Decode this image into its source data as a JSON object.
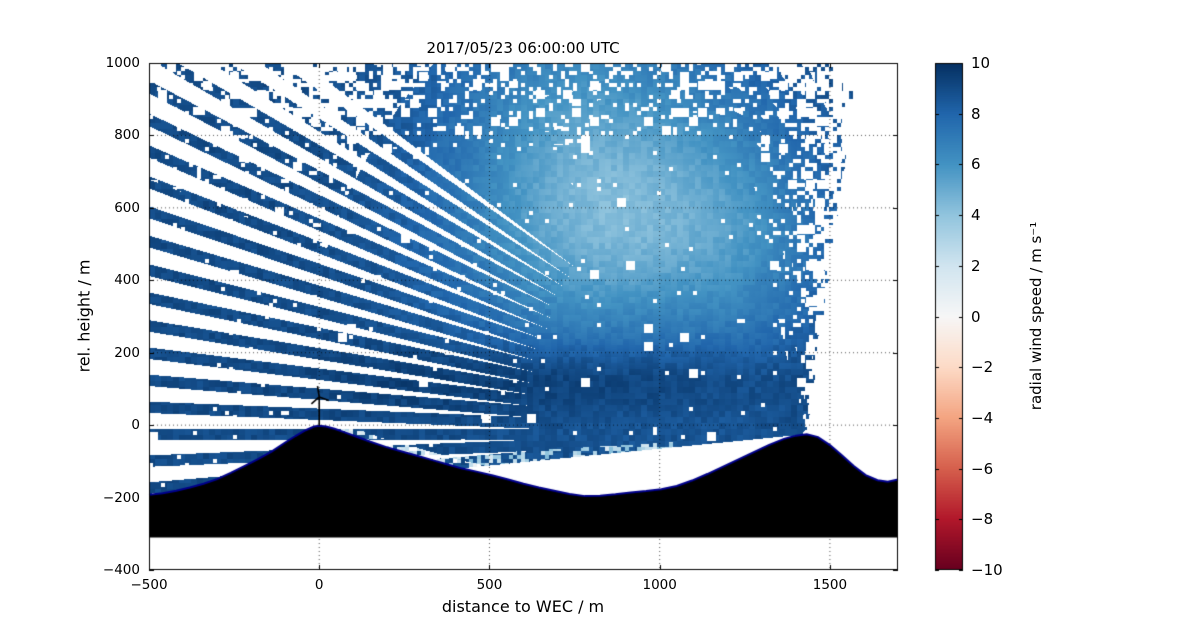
{
  "chart_data": {
    "type": "heatmap",
    "subtype": "lidar-rhi-scan-cross-section",
    "title": "2017/05/23 06:00:00 UTC",
    "xlabel": "distance to WEC / m",
    "ylabel": "rel. height / m",
    "xlim": [
      -500,
      1700
    ],
    "ylim": [
      -400,
      1000
    ],
    "xticks": [
      -500,
      0,
      500,
      1000,
      1500
    ],
    "yticks": [
      -400,
      -200,
      0,
      200,
      400,
      600,
      800,
      1000
    ],
    "grid": {
      "visible": true,
      "linestyle": "dotted"
    },
    "colorbar": {
      "label": "radial wind speed / m s⁻¹",
      "vmin": -10,
      "vmax": 10,
      "ticks": [
        10,
        8,
        6,
        4,
        2,
        0,
        -2,
        -4,
        -6,
        -8,
        -10
      ],
      "cmap_name": "RdBu",
      "cmap_anchors": [
        "#67001f",
        "#b2182b",
        "#d6604d",
        "#f4a582",
        "#fddbc7",
        "#f7f7f7",
        "#d1e5f0",
        "#92c5de",
        "#4393c3",
        "#2166ac",
        "#053061"
      ]
    },
    "scan": {
      "lidar_position": {
        "x": 1432,
        "y": -25
      },
      "view_min_ang": 81.4,
      "view_max_ang": 185.3,
      "beam_step_deg": 2.2,
      "stripe_max_elev_deg": 35
    },
    "wind_field": {
      "background": 9.0,
      "blobs": [
        {
          "x": 880,
          "y": 530,
          "sx": 330,
          "sy": 260,
          "amp": -4.2
        },
        {
          "x": 750,
          "y": 920,
          "sx": 280,
          "sy": 220,
          "amp": -1.8
        },
        {
          "x": 1260,
          "y": 520,
          "sx": 160,
          "sy": 280,
          "amp": -1.0
        },
        {
          "x": 800,
          "y": 130,
          "sx": 450,
          "sy": 70,
          "amp": 1.3
        },
        {
          "x": 1000,
          "y": 300,
          "sx": 200,
          "sy": 120,
          "amp": 0.5
        }
      ]
    },
    "terrain": {
      "fill_color": "#000000",
      "outline_color": "#00008b",
      "base_height": -310,
      "profile": [
        [
          -500,
          -192
        ],
        [
          -460,
          -188
        ],
        [
          -420,
          -181
        ],
        [
          -380,
          -172
        ],
        [
          -340,
          -162
        ],
        [
          -300,
          -149
        ],
        [
          -260,
          -132
        ],
        [
          -220,
          -113
        ],
        [
          -180,
          -94
        ],
        [
          -140,
          -73
        ],
        [
          -100,
          -48
        ],
        [
          -70,
          -30
        ],
        [
          -40,
          -14
        ],
        [
          -15,
          -4
        ],
        [
          0,
          -2
        ],
        [
          20,
          -4
        ],
        [
          45,
          -10
        ],
        [
          75,
          -20
        ],
        [
          110,
          -32
        ],
        [
          150,
          -46
        ],
        [
          195,
          -60
        ],
        [
          240,
          -72
        ],
        [
          285,
          -84
        ],
        [
          330,
          -96
        ],
        [
          375,
          -108
        ],
        [
          420,
          -120
        ],
        [
          465,
          -129
        ],
        [
          510,
          -139
        ],
        [
          555,
          -150
        ],
        [
          600,
          -162
        ],
        [
          645,
          -172
        ],
        [
          690,
          -181
        ],
        [
          735,
          -190
        ],
        [
          780,
          -196
        ],
        [
          825,
          -195
        ],
        [
          870,
          -191
        ],
        [
          915,
          -186
        ],
        [
          960,
          -182
        ],
        [
          1005,
          -177
        ],
        [
          1050,
          -168
        ],
        [
          1095,
          -153
        ],
        [
          1140,
          -135
        ],
        [
          1185,
          -115
        ],
        [
          1230,
          -95
        ],
        [
          1275,
          -75
        ],
        [
          1320,
          -55
        ],
        [
          1365,
          -38
        ],
        [
          1400,
          -29
        ],
        [
          1432,
          -25
        ],
        [
          1465,
          -33
        ],
        [
          1500,
          -55
        ],
        [
          1535,
          -83
        ],
        [
          1570,
          -113
        ],
        [
          1605,
          -138
        ],
        [
          1640,
          -152
        ],
        [
          1670,
          -156
        ],
        [
          1700,
          -150
        ]
      ]
    },
    "turbine": {
      "x": 0,
      "base_height": -2,
      "hub_height": 78,
      "blade_tips": [
        [
          -5,
          108
        ],
        [
          -23,
          59
        ],
        [
          28,
          68
        ]
      ]
    }
  }
}
